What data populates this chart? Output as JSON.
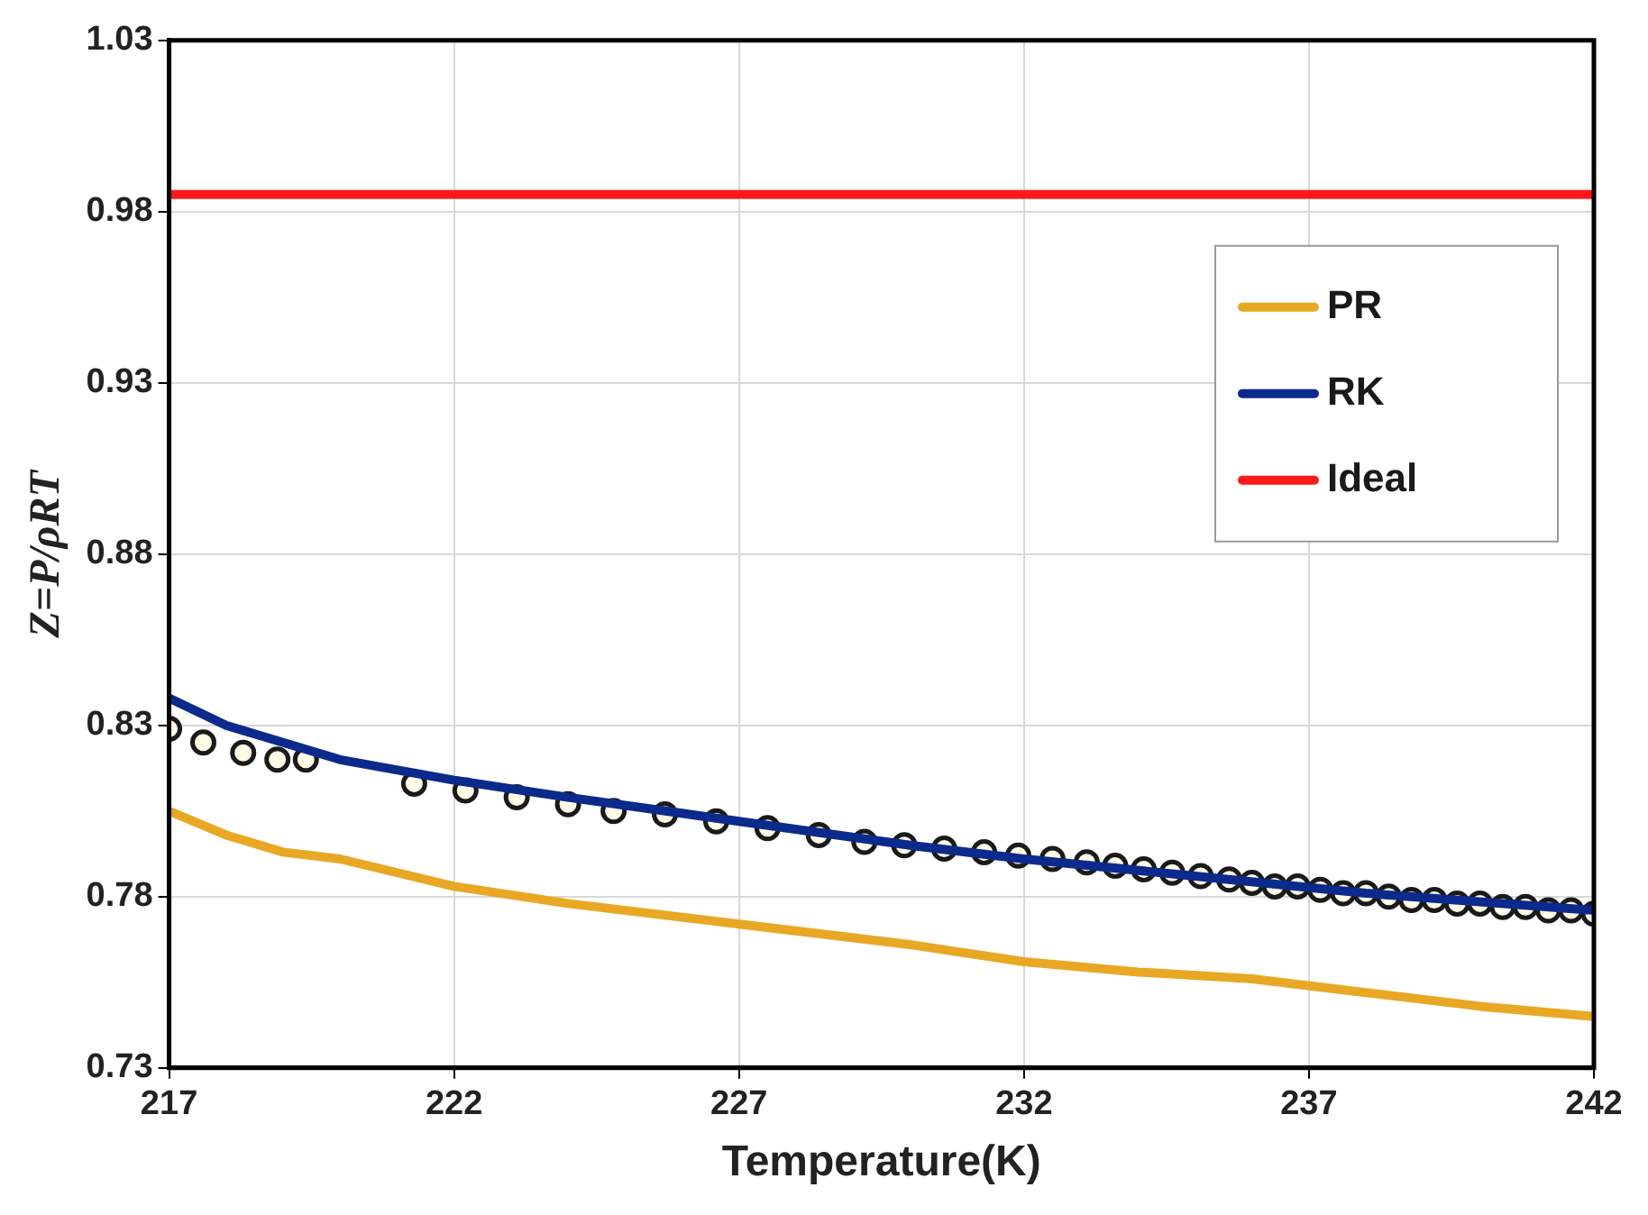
{
  "chart_data": {
    "type": "line",
    "xlabel": "Temperature(K)",
    "ylabel": "Z=P/ρRT",
    "xlim": [
      217,
      242
    ],
    "xticks": [
      217,
      222,
      227,
      232,
      237,
      242
    ],
    "ylim": [
      0.73,
      1.03
    ],
    "yticks": [
      0.73,
      0.78,
      0.83,
      0.88,
      0.93,
      0.98,
      1.03
    ],
    "grid": true,
    "legend": "top right",
    "series": [
      {
        "name": "PR",
        "color": "#e8a824",
        "marker": "none",
        "x": [
          217,
          218,
          219,
          220,
          222,
          224,
          227,
          230,
          232,
          234,
          236,
          238,
          240,
          242
        ],
        "values": [
          0.805,
          0.798,
          0.793,
          0.791,
          0.783,
          0.778,
          0.772,
          0.766,
          0.761,
          0.758,
          0.756,
          0.752,
          0.748,
          0.745
        ]
      },
      {
        "name": "RK",
        "color": "#0b2a8c",
        "marker": "none",
        "x": [
          217,
          218,
          219,
          220,
          222,
          224,
          227,
          230,
          232,
          235,
          238,
          242
        ],
        "values": [
          0.838,
          0.83,
          0.825,
          0.82,
          0.814,
          0.809,
          0.802,
          0.795,
          0.791,
          0.786,
          0.781,
          0.776
        ]
      },
      {
        "name": "Ideal",
        "color": "#ff1a1a",
        "marker": "none",
        "x": [
          217,
          242
        ],
        "values": [
          0.985,
          0.985
        ]
      },
      {
        "color": "#1a1a1a",
        "type": "scatter",
        "marker": "circle",
        "x": [
          217,
          217.6,
          218.3,
          218.9,
          219.4,
          221.3,
          222.2,
          223.1,
          224,
          224.8,
          225.7,
          226.6,
          227.5,
          228.4,
          229.2,
          229.9,
          230.6,
          231.3,
          231.9,
          232.5,
          233.1,
          233.6,
          234.1,
          234.6,
          235.1,
          235.6,
          236,
          236.4,
          236.8,
          237.2,
          237.6,
          238,
          238.4,
          238.8,
          239.2,
          239.6,
          240,
          240.4,
          240.8,
          241.2,
          241.6,
          242
        ],
        "values": [
          0.829,
          0.825,
          0.822,
          0.82,
          0.82,
          0.813,
          0.811,
          0.809,
          0.807,
          0.805,
          0.804,
          0.802,
          0.8,
          0.798,
          0.796,
          0.795,
          0.794,
          0.793,
          0.792,
          0.791,
          0.79,
          0.789,
          0.788,
          0.787,
          0.786,
          0.785,
          0.784,
          0.783,
          0.783,
          0.782,
          0.781,
          0.781,
          0.78,
          0.779,
          0.779,
          0.778,
          0.778,
          0.777,
          0.777,
          0.776,
          0.776,
          0.775
        ]
      }
    ]
  }
}
